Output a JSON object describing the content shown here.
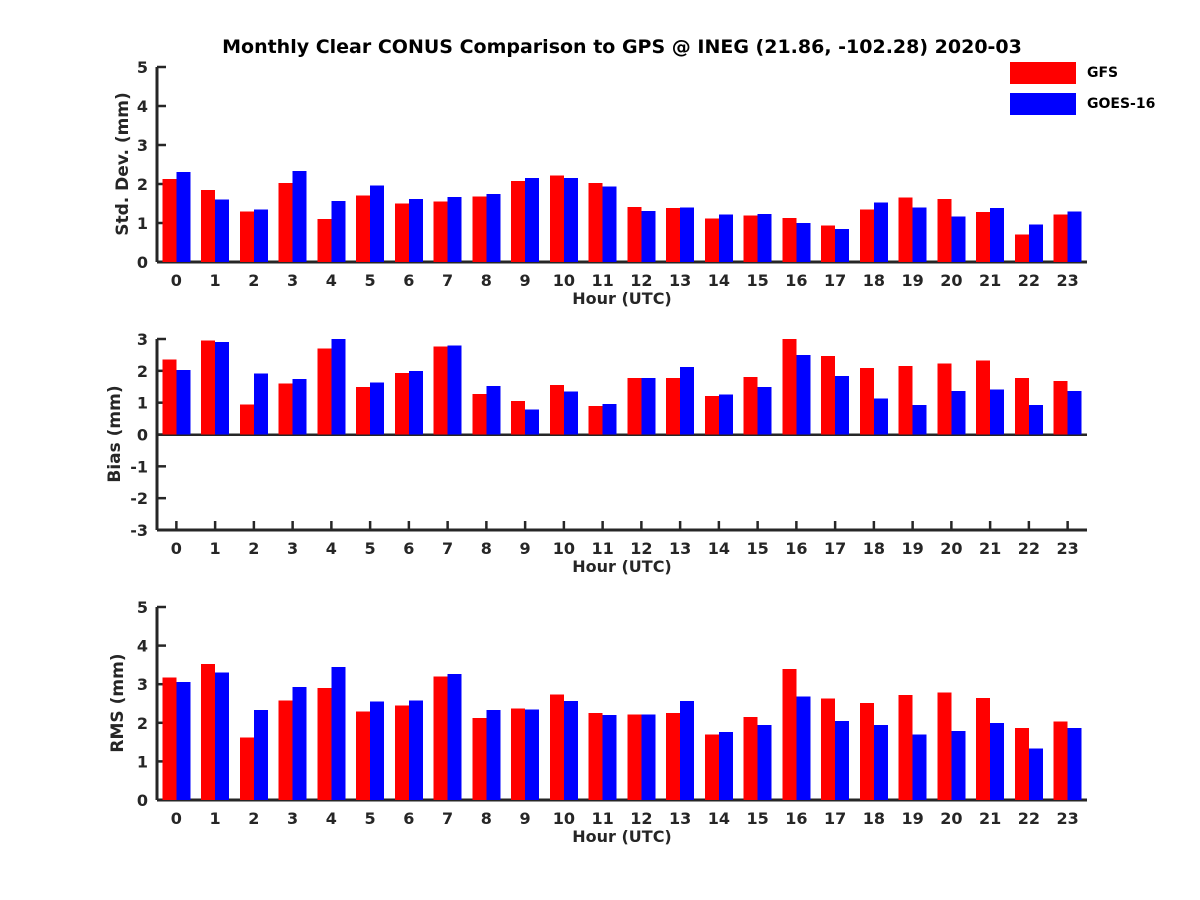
{
  "title": "Monthly Clear CONUS Comparison to GPS @ INEG (21.86, -102.28) 2020-03",
  "colors": {
    "gfs": "#ff0000",
    "goes16": "#0000ff",
    "axis": "#262626"
  },
  "legend": {
    "position": "top-right",
    "items": [
      {
        "label": "GFS",
        "color": "#ff0000"
      },
      {
        "label": "GOES-16",
        "color": "#0000ff"
      }
    ]
  },
  "chart_data": [
    {
      "type": "bar",
      "ylabel": "Std. Dev. (mm)",
      "xlabel": "Hour (UTC)",
      "categories": [
        "0",
        "1",
        "2",
        "3",
        "4",
        "5",
        "6",
        "7",
        "8",
        "9",
        "10",
        "11",
        "12",
        "13",
        "14",
        "15",
        "16",
        "17",
        "18",
        "19",
        "20",
        "21",
        "22",
        "23"
      ],
      "ylim": [
        0,
        5
      ],
      "yticks": [
        0,
        1,
        2,
        3,
        4,
        5
      ],
      "grid": false,
      "series": [
        {
          "name": "GFS",
          "color": "#ff0000",
          "values": [
            2.13,
            1.85,
            1.3,
            2.02,
            1.1,
            1.7,
            1.5,
            1.55,
            1.68,
            2.08,
            2.22,
            2.03,
            1.41,
            1.38,
            1.12,
            1.19,
            1.13,
            0.93,
            1.35,
            1.65,
            1.62,
            1.28,
            0.7,
            1.22
          ]
        },
        {
          "name": "GOES-16",
          "color": "#0000ff",
          "values": [
            2.31,
            1.6,
            1.35,
            2.33,
            1.57,
            1.96,
            1.62,
            1.67,
            1.74,
            2.16,
            2.16,
            1.93,
            1.31,
            1.4,
            1.22,
            1.23,
            1.0,
            0.85,
            1.52,
            1.4,
            1.17,
            1.38,
            0.96,
            1.3
          ]
        }
      ]
    },
    {
      "type": "bar",
      "ylabel": "Bias (mm)",
      "xlabel": "Hour (UTC)",
      "categories": [
        "0",
        "1",
        "2",
        "3",
        "4",
        "5",
        "6",
        "7",
        "8",
        "9",
        "10",
        "11",
        "12",
        "13",
        "14",
        "15",
        "16",
        "17",
        "18",
        "19",
        "20",
        "21",
        "22",
        "23"
      ],
      "ylim": [
        -3,
        3
      ],
      "yticks": [
        -3,
        -2,
        -1,
        0,
        1,
        2,
        3
      ],
      "grid": false,
      "series": [
        {
          "name": "GFS",
          "color": "#ff0000",
          "values": [
            2.36,
            2.95,
            0.95,
            1.6,
            2.7,
            1.5,
            1.93,
            2.77,
            1.28,
            1.06,
            1.56,
            0.9,
            1.77,
            1.77,
            1.21,
            1.8,
            3.0,
            2.46,
            2.09,
            2.15,
            2.23,
            2.33,
            1.78,
            1.68
          ]
        },
        {
          "name": "GOES-16",
          "color": "#0000ff",
          "values": [
            2.02,
            2.9,
            1.92,
            1.75,
            3.0,
            1.63,
            2.0,
            2.8,
            1.53,
            0.78,
            1.35,
            0.96,
            1.77,
            2.12,
            1.25,
            1.5,
            2.49,
            1.84,
            1.13,
            0.92,
            1.37,
            1.42,
            0.93,
            1.37
          ]
        }
      ]
    },
    {
      "type": "bar",
      "ylabel": "RMS (mm)",
      "xlabel": "Hour (UTC)",
      "categories": [
        "0",
        "1",
        "2",
        "3",
        "4",
        "5",
        "6",
        "7",
        "8",
        "9",
        "10",
        "11",
        "12",
        "13",
        "14",
        "15",
        "16",
        "17",
        "18",
        "19",
        "20",
        "21",
        "22",
        "23"
      ],
      "ylim": [
        0,
        5
      ],
      "yticks": [
        0,
        1,
        2,
        3,
        4,
        5
      ],
      "grid": false,
      "series": [
        {
          "name": "GFS",
          "color": "#ff0000",
          "values": [
            3.17,
            3.52,
            1.62,
            2.58,
            2.9,
            2.29,
            2.45,
            3.2,
            2.13,
            2.37,
            2.73,
            2.25,
            2.22,
            2.26,
            1.7,
            2.15,
            3.4,
            2.63,
            2.51,
            2.72,
            2.78,
            2.64,
            1.86,
            2.03
          ]
        },
        {
          "name": "GOES-16",
          "color": "#0000ff",
          "values": [
            3.06,
            3.3,
            2.33,
            2.93,
            3.45,
            2.55,
            2.58,
            3.26,
            2.33,
            2.34,
            2.57,
            2.2,
            2.21,
            2.57,
            1.76,
            1.94,
            2.68,
            2.05,
            1.94,
            1.7,
            1.79,
            2.0,
            1.34,
            1.86
          ]
        }
      ]
    }
  ]
}
